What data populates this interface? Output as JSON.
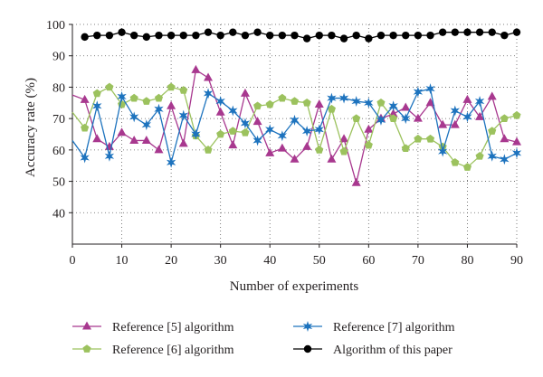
{
  "chart_data": {
    "type": "line",
    "title": "",
    "xlabel": "Number of experiments",
    "ylabel": "Accuracy rate (%)",
    "xlim": [
      0,
      90
    ],
    "ylim": [
      30,
      100
    ],
    "xticks": [
      0,
      10,
      20,
      30,
      40,
      50,
      60,
      70,
      80,
      90
    ],
    "yticks": [
      40,
      50,
      60,
      70,
      80,
      90,
      100
    ],
    "grid": true,
    "legend_position": "bottom",
    "x": [
      2.5,
      5,
      7.5,
      10,
      12.5,
      15,
      17.5,
      20,
      22.5,
      25,
      27.5,
      30,
      32.5,
      35,
      37.5,
      40,
      42.5,
      45,
      47.5,
      50,
      52.5,
      55,
      57.5,
      60,
      62.5,
      65,
      67.5,
      70,
      72.5,
      75,
      77.5,
      80,
      82.5,
      85,
      87.5,
      90
    ],
    "series": [
      {
        "name": "Reference [5] algorithm",
        "color": "#a8388f",
        "marker": "triangle",
        "start": [
          0,
          77.5
        ],
        "values": [
          76,
          63.5,
          61,
          65.5,
          63,
          63,
          60,
          74,
          62,
          85.5,
          83,
          72,
          61.5,
          78,
          69,
          59,
          60.5,
          57,
          61,
          74.5,
          57,
          63.5,
          49.5,
          66.5,
          70,
          71.5,
          73.5,
          70,
          75,
          68,
          68,
          76,
          70.5,
          77,
          63.5,
          62.5
        ]
      },
      {
        "name": "Reference [6] algorithm",
        "color": "#9cc25e",
        "marker": "pentagon",
        "start": [
          0,
          72
        ],
        "values": [
          67,
          78,
          80,
          74.5,
          76.5,
          75.5,
          76.5,
          80,
          79,
          64.5,
          60,
          65,
          66,
          65.5,
          74,
          74.5,
          76.5,
          75.5,
          75,
          60,
          73,
          59.5,
          70,
          61.5,
          75,
          70,
          60.5,
          63.5,
          63.5,
          61,
          56,
          54.5,
          58,
          66,
          70,
          71
        ]
      },
      {
        "name": "Reference [7] algorithm",
        "color": "#1d73be",
        "marker": "star",
        "start": [
          0,
          63
        ],
        "values": [
          57.5,
          74,
          58,
          77,
          70.5,
          68,
          73,
          56,
          71,
          65,
          78,
          75.5,
          72.5,
          68.5,
          63,
          66.5,
          64.5,
          69.5,
          66,
          66.5,
          76.5,
          76.5,
          75.5,
          75,
          69.5,
          74,
          70,
          78.5,
          79.5,
          59.5,
          72.5,
          70.5,
          75.5,
          58,
          57,
          59
        ]
      },
      {
        "name": "Algorithm of this paper",
        "color": "#000000",
        "marker": "circle",
        "start": null,
        "values": [
          96,
          96.5,
          96.5,
          97.5,
          96.5,
          96,
          96.5,
          96.5,
          96.5,
          96.5,
          97.5,
          96.5,
          97.5,
          96.5,
          97.5,
          96.5,
          96.5,
          96.5,
          95.5,
          96.5,
          96.5,
          95.5,
          96.5,
          95.5,
          96.5,
          96.5,
          96.5,
          96.5,
          96.5,
          97.5,
          97.5,
          97.5,
          97.5,
          97.5,
          96.5,
          97.5
        ]
      }
    ]
  }
}
